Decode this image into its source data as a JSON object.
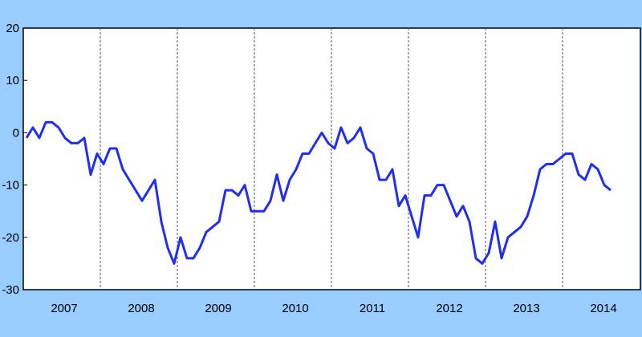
{
  "chart_data": {
    "type": "line",
    "title": "",
    "xlabel": "",
    "ylabel": "",
    "ylim": [
      -30,
      20
    ],
    "yticks": [
      20,
      10,
      0,
      -10,
      -20,
      -30
    ],
    "ytick_labels": [
      "20",
      "10",
      "0",
      "-10",
      "-20",
      "-30"
    ],
    "x_tick_labels": [
      "2007",
      "2008",
      "2009",
      "2010",
      "2011",
      "2012",
      "2013",
      "2014"
    ],
    "grid": "vertical dashed year separators",
    "legend": "none",
    "series": [
      {
        "color": "#1f2ef0",
        "values": [
          -1,
          1,
          -1,
          2,
          2,
          1,
          -1,
          -2,
          -2,
          -1,
          -8,
          -4,
          -6,
          -3,
          -3,
          -7,
          -9,
          -11,
          -13,
          -11,
          -9,
          -17,
          -22,
          -25,
          -20,
          -24,
          -24,
          -22,
          -19,
          -18,
          -17,
          -11,
          -11,
          -12,
          -10,
          -15,
          -15,
          -15,
          -13,
          -8,
          -13,
          -9,
          -7,
          -4,
          -4,
          -2,
          0,
          -2,
          -3,
          1,
          -2,
          -1,
          1,
          -3,
          -4,
          -9,
          -9,
          -7,
          -14,
          -12,
          -16,
          -20,
          -12,
          -12,
          -10,
          -10,
          -13,
          -16,
          -14,
          -17,
          -24,
          -25,
          -23,
          -17,
          -24,
          -20,
          -19,
          -18,
          -16,
          -12,
          -7,
          -6,
          -6,
          -5,
          -4,
          -4,
          -8,
          -9,
          -6,
          -7,
          -10,
          -11
        ]
      }
    ]
  }
}
